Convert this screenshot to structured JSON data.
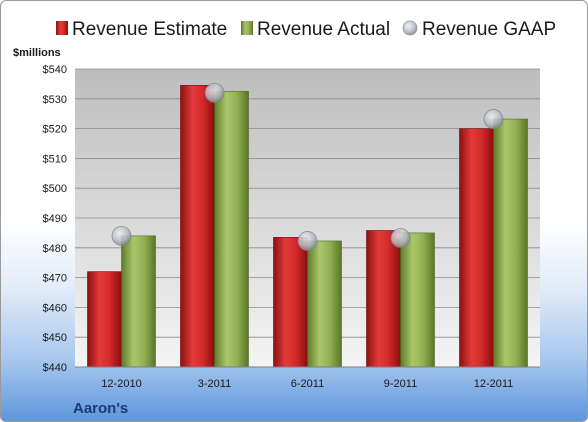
{
  "chart_data": {
    "type": "bar",
    "company": "Aaron's",
    "unit_label": "$millions",
    "categories": [
      "12-2010",
      "3-2011",
      "6-2011",
      "9-2011",
      "12-2011"
    ],
    "series": [
      {
        "name": "Revenue Estimate",
        "kind": "bar",
        "color": "#d42a2a",
        "values": [
          472.0,
          534.5,
          483.5,
          485.8,
          520.0
        ]
      },
      {
        "name": "Revenue Actual",
        "kind": "bar",
        "color": "#93b255",
        "values": [
          484.0,
          532.5,
          482.3,
          485.0,
          523.2
        ]
      },
      {
        "name": "Revenue GAAP",
        "kind": "marker",
        "color": "#b8bcc6",
        "values": [
          484.0,
          532.0,
          482.3,
          483.3,
          523.2
        ]
      }
    ],
    "ylim": [
      440,
      540
    ],
    "yticks": [
      440,
      450,
      460,
      470,
      480,
      490,
      500,
      510,
      520,
      530,
      540
    ],
    "ytick_labels": [
      "$440",
      "$450",
      "$460",
      "$470",
      "$480",
      "$490",
      "$500",
      "$510",
      "$520",
      "$530",
      "$540"
    ],
    "grid": true,
    "legend_position": "top"
  }
}
